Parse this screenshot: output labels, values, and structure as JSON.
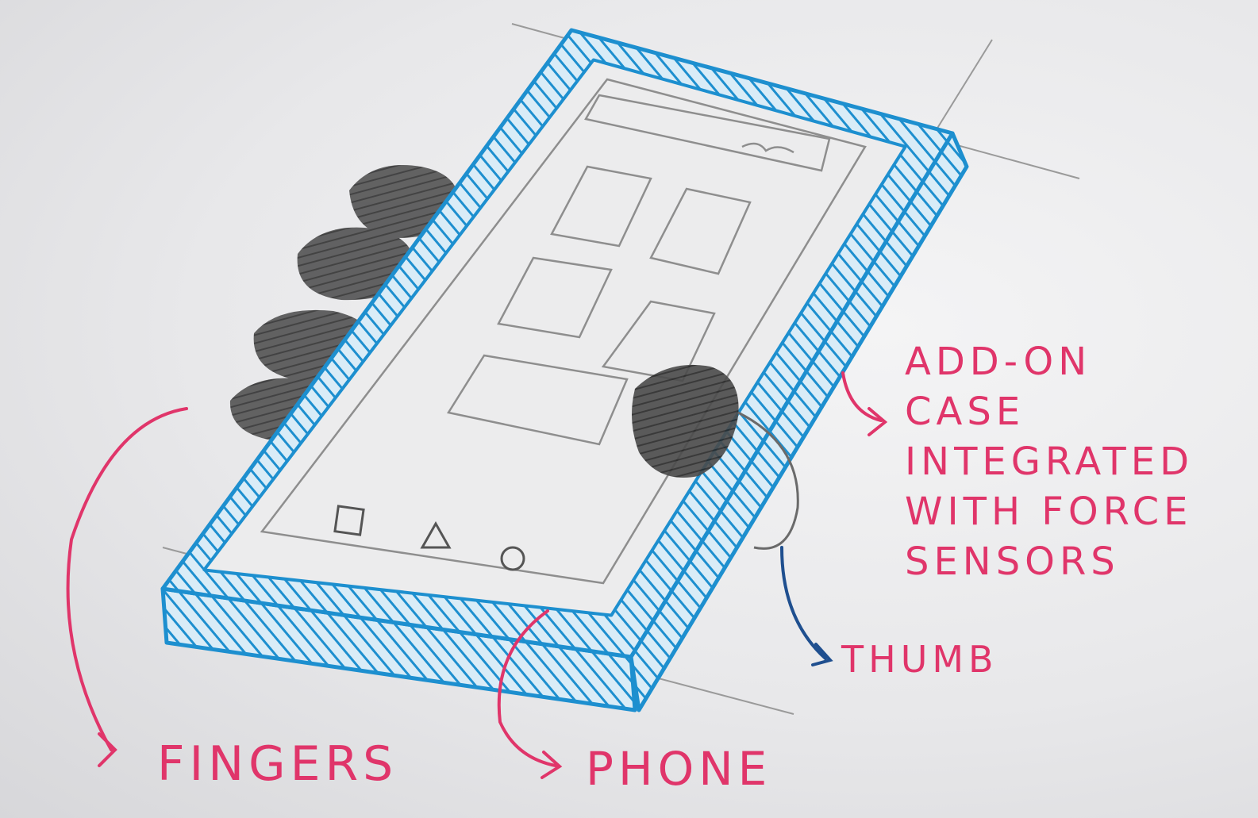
{
  "colors": {
    "ink_label": "#e0356a",
    "ink_case": "#1d8fcf",
    "ink_thumb_arrow": "#1f4f8f",
    "pencil": "#8e8e8e",
    "finger_shading": "#3b3b3b",
    "paper": "#ececed"
  },
  "labels": {
    "fingers": "FINGERS",
    "phone": "PHONE",
    "thumb": "THUMB",
    "case_lines": [
      "ADD-ON",
      "CASE",
      "INTEGRATED",
      "WITH FORCE",
      "SENSORS"
    ]
  },
  "icons": {
    "nav_back": "square-icon",
    "nav_home": "triangle-icon",
    "nav_recent": "circle-icon"
  }
}
